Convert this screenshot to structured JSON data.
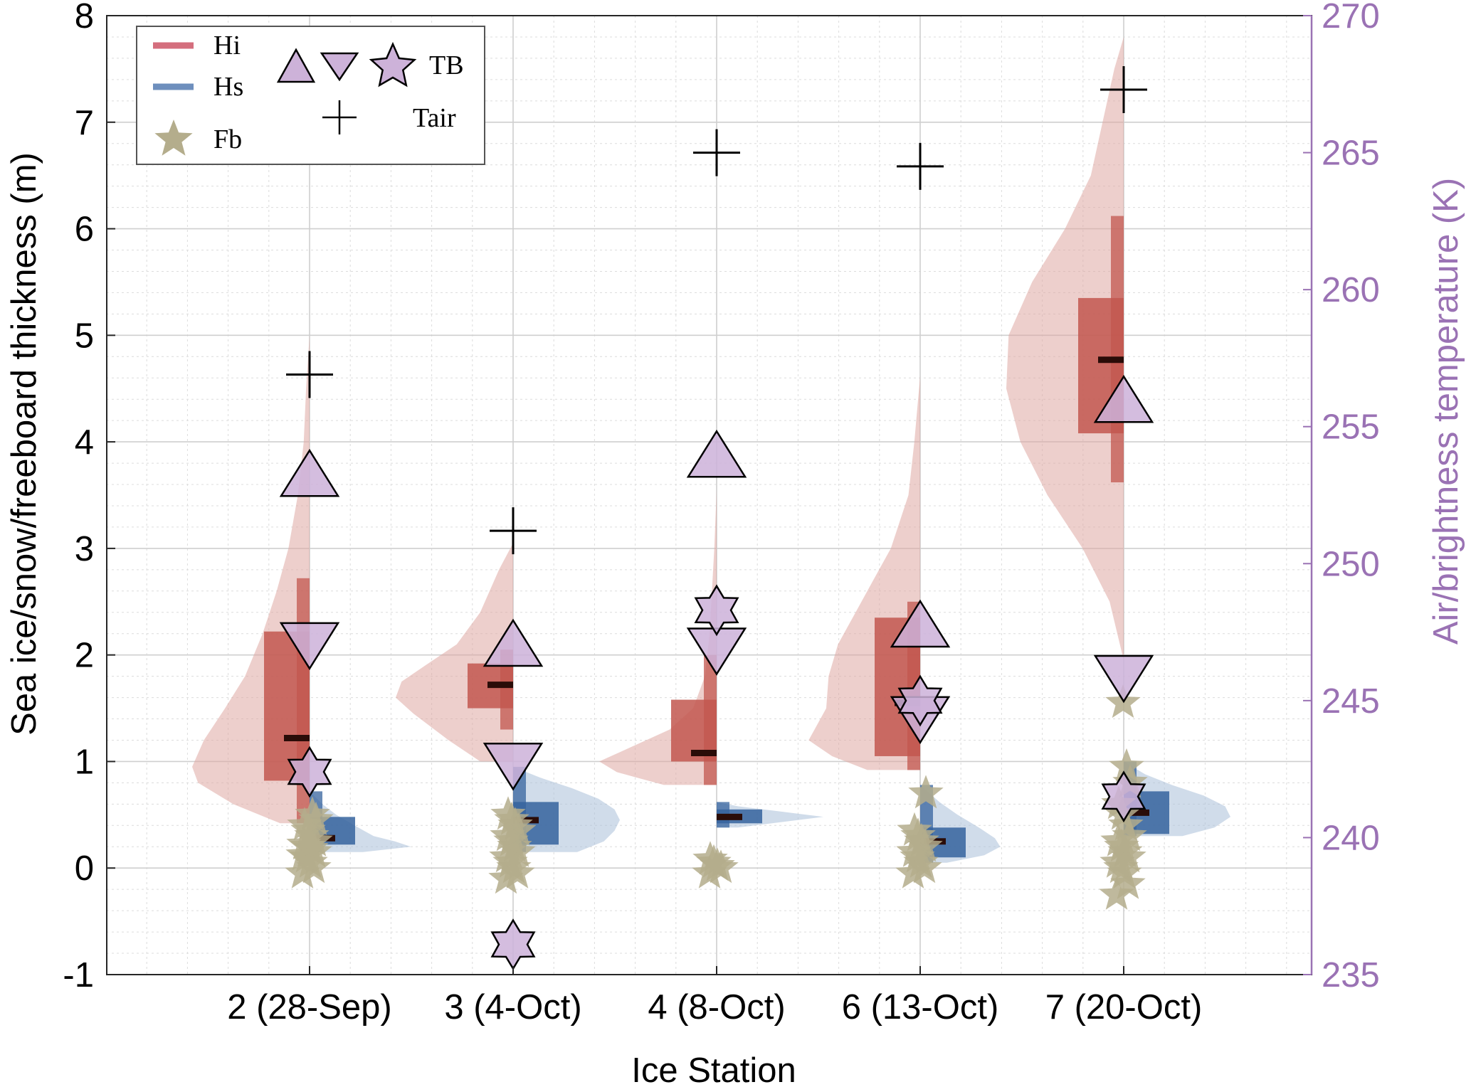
{
  "colors": {
    "hi": "#c2574f",
    "hi_light": "#dfa8a2",
    "hi_legend": "#d46e7d",
    "hs": "#35639d",
    "hs_light": "#a9bfd8",
    "hs_legend": "#6e8fbd",
    "fb": "#b4ad8c",
    "tb_fill": "#cdb2d9",
    "tb_axis": "#9a72b4",
    "tair": "#000000"
  },
  "chart_data": {
    "type": "violin",
    "xlabel": "Ice Station",
    "ylabel_left": "Sea ice/snow/freeboard thickness (m)",
    "ylabel_right": "Air/brightness temperature (K)",
    "ylim_left": [
      -1,
      8
    ],
    "ylim_right": [
      235,
      270
    ],
    "yticks_left": [
      "-1",
      "0",
      "1",
      "2",
      "3",
      "4",
      "5",
      "6",
      "7",
      "8"
    ],
    "yticks_right": [
      "235",
      "240",
      "245",
      "250",
      "255",
      "260",
      "265",
      "270"
    ],
    "grid": true,
    "legend_position": "top-left",
    "legend": {
      "hi": "Hi",
      "hs": "Hs",
      "fb": "Fb",
      "tb": "TB",
      "tair": "Tair"
    },
    "stations": [
      {
        "label": "2 (28-Sep)",
        "hi": {
          "min": 0.42,
          "q1": 0.82,
          "median": 1.22,
          "q3": 2.22,
          "whisker_hi": 2.72,
          "max": 5.0,
          "density_y": [
            0.42,
            0.6,
            0.8,
            0.95,
            1.2,
            1.5,
            1.8,
            2.2,
            2.6,
            3.0,
            3.5,
            4.0,
            4.5,
            5.0
          ],
          "density_w": [
            0.25,
            0.65,
            0.95,
            1.0,
            0.9,
            0.72,
            0.55,
            0.4,
            0.28,
            0.18,
            0.1,
            0.05,
            0.03,
            0.0
          ]
        },
        "hs": {
          "min": 0.15,
          "q1": 0.22,
          "median": 0.28,
          "q3": 0.48,
          "max": 0.72,
          "density_y": [
            0.15,
            0.2,
            0.25,
            0.3,
            0.4,
            0.5,
            0.6,
            0.72
          ],
          "density_w": [
            0.5,
            0.95,
            0.8,
            0.6,
            0.42,
            0.25,
            0.12,
            0.0
          ]
        },
        "fb": [
          -0.05,
          0.0,
          0.05,
          0.1,
          0.12,
          0.15,
          0.18,
          0.2,
          0.22,
          0.25,
          0.3,
          0.35,
          0.4,
          0.45,
          0.5
        ],
        "tb_up": 253.3,
        "tb_down": 247.0,
        "tb_star": 242.4,
        "tair": 256.9
      },
      {
        "label": "3 (4-Oct)",
        "hi": {
          "min": 1.0,
          "q1": 1.5,
          "median": 1.72,
          "q3": 1.92,
          "whisker_lo": 1.3,
          "whisker_hi": 2.05,
          "max": 3.05,
          "density_y": [
            1.0,
            1.2,
            1.45,
            1.6,
            1.75,
            1.9,
            2.1,
            2.4,
            2.8,
            3.05
          ],
          "density_w": [
            0.28,
            0.55,
            0.85,
            1.0,
            0.95,
            0.75,
            0.48,
            0.28,
            0.12,
            0.0
          ]
        },
        "hs": {
          "min": 0.15,
          "q1": 0.22,
          "median": 0.45,
          "q3": 0.62,
          "max": 0.95,
          "density_y": [
            0.15,
            0.25,
            0.35,
            0.45,
            0.55,
            0.65,
            0.75,
            0.85,
            0.95
          ],
          "density_w": [
            0.6,
            0.85,
            0.95,
            1.0,
            0.95,
            0.8,
            0.55,
            0.25,
            0.0
          ]
        },
        "fb": [
          -0.1,
          -0.05,
          0.0,
          0.05,
          0.1,
          0.15,
          0.2,
          0.25,
          0.3,
          0.35,
          0.4,
          0.45,
          0.5
        ],
        "tb_up": 247.1,
        "tb_down": 242.6,
        "tb_star": 236.1,
        "tair": 251.2
      },
      {
        "label": "4 (8-Oct)",
        "hi": {
          "min": 0.78,
          "q1": 1.0,
          "median": 1.08,
          "q3": 1.58,
          "whisker_hi": 2.0,
          "max": 3.55,
          "density_y": [
            0.78,
            0.9,
            1.0,
            1.1,
            1.3,
            1.5,
            1.8,
            2.2,
            2.6,
            3.0,
            3.55
          ],
          "density_w": [
            0.45,
            0.85,
            1.0,
            0.8,
            0.4,
            0.2,
            0.1,
            0.06,
            0.04,
            0.02,
            0.0
          ]
        },
        "hs": {
          "min": 0.38,
          "q1": 0.42,
          "median": 0.48,
          "q3": 0.55,
          "max": 0.62,
          "density_y": [
            0.38,
            0.43,
            0.48,
            0.53,
            0.58,
            0.62
          ],
          "density_w": [
            0.2,
            0.6,
            1.0,
            0.6,
            0.2,
            0.0
          ]
        },
        "fb": [
          -0.05,
          0.0,
          0.02,
          0.05,
          0.08
        ],
        "tb_up": 254.0,
        "tb_down": 246.8,
        "tb_star": 248.3,
        "tair": 265.0
      },
      {
        "label": "6 (13-Oct)",
        "hi": {
          "min": 0.92,
          "q1": 1.05,
          "median": 1.55,
          "q3": 2.35,
          "whisker_hi": 2.5,
          "max": 4.62,
          "density_y": [
            0.92,
            1.05,
            1.2,
            1.5,
            1.8,
            2.1,
            2.4,
            2.7,
            3.0,
            3.5,
            4.0,
            4.62
          ],
          "density_w": [
            0.45,
            0.75,
            0.95,
            0.8,
            0.78,
            0.7,
            0.55,
            0.4,
            0.25,
            0.1,
            0.05,
            0.0
          ]
        },
        "hs": {
          "min": 0.05,
          "q1": 0.1,
          "median": 0.25,
          "q3": 0.38,
          "max": 0.78,
          "density_y": [
            0.05,
            0.12,
            0.2,
            0.28,
            0.38,
            0.5,
            0.62,
            0.78
          ],
          "density_w": [
            0.25,
            0.6,
            0.75,
            0.7,
            0.55,
            0.35,
            0.18,
            0.0
          ]
        },
        "fb": [
          -0.05,
          0.0,
          0.05,
          0.1,
          0.15,
          0.2,
          0.25,
          0.3,
          0.35,
          0.7
        ],
        "tb_up": 247.8,
        "tb_down": 244.3,
        "tb_star": 245.0,
        "tair": 264.5
      },
      {
        "label": "7 (20-Oct)",
        "hi": {
          "min": 1.95,
          "q1": 4.08,
          "median": 4.77,
          "q3": 5.35,
          "whisker_lo": 3.62,
          "whisker_hi": 6.12,
          "max": 7.8,
          "density_y": [
            1.95,
            2.5,
            3.0,
            3.5,
            4.0,
            4.5,
            5.0,
            5.5,
            6.0,
            6.5,
            7.0,
            7.5,
            7.8
          ],
          "density_w": [
            0.0,
            0.12,
            0.35,
            0.65,
            0.88,
            1.0,
            0.98,
            0.78,
            0.5,
            0.28,
            0.18,
            0.08,
            0.0
          ]
        },
        "hs": {
          "min": 0.3,
          "q1": 0.32,
          "median": 0.52,
          "q3": 0.72,
          "max": 1.0,
          "density_y": [
            0.3,
            0.38,
            0.48,
            0.58,
            0.68,
            0.78,
            0.88,
            1.0
          ],
          "density_w": [
            0.55,
            0.85,
            1.0,
            0.95,
            0.75,
            0.45,
            0.2,
            0.0
          ]
        },
        "fb": [
          -0.25,
          -0.15,
          -0.05,
          0.0,
          0.05,
          0.1,
          0.15,
          0.2,
          0.25,
          0.3,
          0.4,
          0.5,
          0.6,
          0.8,
          0.95,
          1.55
        ],
        "tb_up": 256.0,
        "tb_down": 245.8,
        "tb_star": 241.5,
        "tair": 267.3
      }
    ]
  }
}
